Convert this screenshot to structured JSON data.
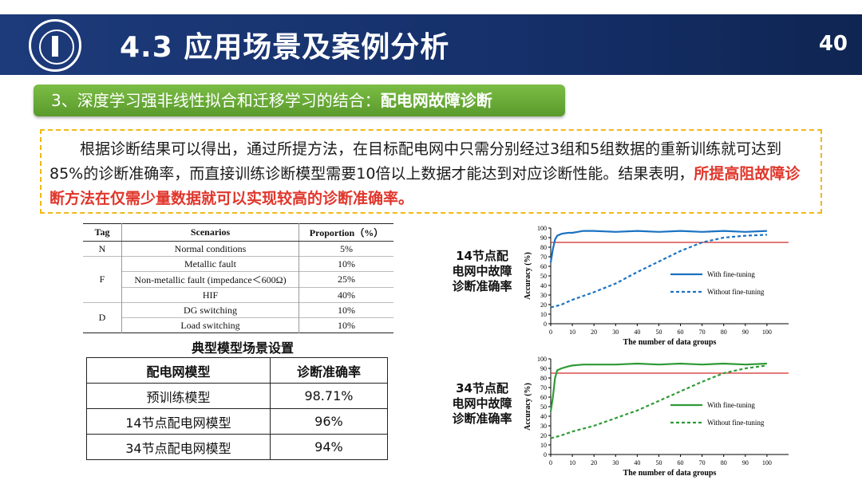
{
  "header": {
    "title": "4.3 应用场景及案例分析",
    "page_number": "40"
  },
  "section": {
    "prefix": "3、深度学习强非线性拟合和迁移学习的结合：",
    "bold": "配电网故障诊断"
  },
  "paragraph": {
    "normal": "根据诊断结果可以得出，通过所提方法，在目标配电网中只需分别经过3组和5组数据的重新训练就可达到85%的诊断准确率，而直接训练诊断模型需要10倍以上数据才能达到对应诊断性能。结果表明，",
    "highlight": "所提高阻故障诊断方法在仅需少量数据就可以实现较高的诊断准确率。"
  },
  "scenario_table": {
    "headers": [
      "Tag",
      "Scenarios",
      "Proportion（%）"
    ],
    "rows": [
      {
        "tag": "N",
        "scenario": "Normal conditions",
        "proportion": "5%"
      },
      {
        "tag": "F",
        "scenario": "Metallic fault",
        "proportion": "10%"
      },
      {
        "tag": "",
        "scenario": "Non-metallic fault (impedance＜600Ω)",
        "proportion": "25%"
      },
      {
        "tag": "",
        "scenario": "HIF",
        "proportion": "40%"
      },
      {
        "tag": "D",
        "scenario": "DG switching",
        "proportion": "10%"
      },
      {
        "tag": "",
        "scenario": "Load switching",
        "proportion": "10%"
      }
    ],
    "caption": "典型模型场景设置"
  },
  "accuracy_table": {
    "headers": [
      "配电网模型",
      "诊断准确率"
    ],
    "rows": [
      {
        "model": "预训练模型",
        "accuracy": "98.71%"
      },
      {
        "model": "14节点配电网模型",
        "accuracy": "96%"
      },
      {
        "model": "34节点配电网模型",
        "accuracy": "94%"
      }
    ]
  },
  "chart_data": [
    {
      "type": "line",
      "label": "14节点配电网中故障诊断准确率",
      "xlabel": "The number of data groups",
      "ylabel": "Accuracy (%)",
      "xlim": [
        0,
        110
      ],
      "ylim": [
        0,
        100
      ],
      "xticks": [
        0,
        10,
        20,
        30,
        40,
        50,
        60,
        70,
        80,
        90,
        100
      ],
      "yticks": [
        0,
        10,
        20,
        30,
        40,
        50,
        60,
        70,
        80,
        90,
        100
      ],
      "threshold": 85,
      "colors": {
        "series": "#1a72c2",
        "threshold": "#d42a2a"
      },
      "series": [
        {
          "name": "With fine-tuning",
          "style": "solid",
          "x": [
            0,
            1,
            2,
            3,
            5,
            8,
            10,
            15,
            20,
            30,
            40,
            50,
            60,
            70,
            80,
            90,
            100
          ],
          "y": [
            64,
            78,
            88,
            92,
            94,
            95,
            95,
            97,
            97,
            96,
            97,
            96,
            97,
            96,
            97,
            96,
            97
          ]
        },
        {
          "name": "Without fine-tuning",
          "style": "dashed",
          "x": [
            0,
            5,
            10,
            20,
            30,
            40,
            50,
            60,
            70,
            80,
            90,
            100
          ],
          "y": [
            17,
            20,
            25,
            33,
            42,
            54,
            65,
            76,
            85,
            90,
            92,
            93
          ]
        }
      ],
      "legend": "right"
    },
    {
      "type": "line",
      "label": "34节点配电网中故障诊断准确率",
      "xlabel": "The number of data groups",
      "ylabel": "Accuracy (%)",
      "xlim": [
        0,
        110
      ],
      "ylim": [
        0,
        100
      ],
      "xticks": [
        0,
        10,
        20,
        30,
        40,
        50,
        60,
        70,
        80,
        90,
        100
      ],
      "yticks": [
        0,
        10,
        20,
        30,
        40,
        50,
        60,
        70,
        80,
        90,
        100
      ],
      "threshold": 85,
      "colors": {
        "series": "#2e9a36",
        "threshold": "#d42a2a"
      },
      "series": [
        {
          "name": "With fine-tuning",
          "style": "solid",
          "x": [
            0,
            1,
            2,
            3,
            5,
            8,
            10,
            15,
            20,
            30,
            40,
            50,
            60,
            70,
            80,
            90,
            100
          ],
          "y": [
            45,
            60,
            80,
            88,
            90,
            92,
            93,
            94,
            94,
            94,
            95,
            94,
            95,
            94,
            95,
            94,
            95
          ]
        },
        {
          "name": "Without fine-tuning",
          "style": "dashed",
          "x": [
            0,
            5,
            10,
            20,
            30,
            40,
            50,
            60,
            70,
            80,
            90,
            100
          ],
          "y": [
            17,
            20,
            24,
            30,
            38,
            46,
            56,
            66,
            76,
            85,
            90,
            93
          ]
        }
      ],
      "legend": "right"
    }
  ]
}
